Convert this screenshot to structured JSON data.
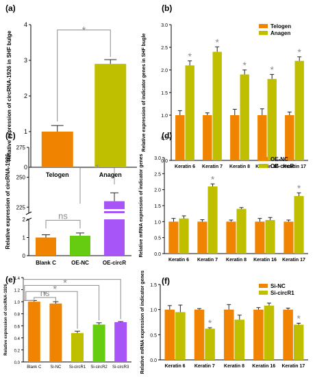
{
  "colors": {
    "orange": "#F08300",
    "olive": "#BFBF00",
    "green": "#66CC11",
    "purple": "#A855F7",
    "axis": "#000000",
    "significance": "#8C8C8C",
    "errorbar": "#222222"
  },
  "significance_marks": {
    "star": "*",
    "ns": "ns"
  },
  "chart_data": [
    {
      "panel": "(a)",
      "type": "bar",
      "ylabel": "Relative expression of circRNA-1926 in SHF bulge",
      "categories": [
        "Telogen",
        "Anagen"
      ],
      "values": [
        1.0,
        2.9
      ],
      "errors": [
        0.17,
        0.12
      ],
      "colors": [
        "#F08300",
        "#BFBF00"
      ],
      "ylim": [
        0,
        4
      ],
      "yticks": [
        "0",
        "1",
        "2",
        "3",
        "4"
      ],
      "significance": [
        {
          "from": 0,
          "to": 1,
          "label": "*"
        }
      ]
    },
    {
      "panel": "(b)",
      "type": "bar",
      "ylabel": "Relative expression of indicator genes in SHF bugle",
      "categories": [
        "Keratin 6",
        "Keratin 7",
        "Keratin 8",
        "Keratin 16",
        "Keratin 17"
      ],
      "series": [
        {
          "name": "Telogen",
          "values": [
            1.0,
            1.0,
            1.0,
            1.0,
            1.0
          ],
          "errors": [
            0.1,
            0.05,
            0.13,
            0.14,
            0.07
          ]
        },
        {
          "name": "Anagen",
          "values": [
            2.1,
            2.4,
            1.9,
            1.8,
            2.2
          ],
          "errors": [
            0.1,
            0.11,
            0.1,
            0.1,
            0.09
          ]
        }
      ],
      "starred": [
        true,
        true,
        true,
        true,
        true
      ],
      "ylim": [
        0,
        3
      ],
      "yticks": [
        "0.0",
        "0.5",
        "1.0",
        "1.5",
        "2.0",
        "2.5",
        "3.0"
      ],
      "legend": "top-right"
    },
    {
      "panel": "(c)",
      "type": "bar",
      "ylabel": "Relative expression of circRNA-1926",
      "categories": [
        "Blank C",
        "OE-NC",
        "OE-circR"
      ],
      "values": [
        1.0,
        1.1,
        230
      ],
      "errors": [
        0.15,
        0.15,
        7
      ],
      "colors": [
        "#F08300",
        "#66CC11",
        "#A855F7"
      ],
      "axis_break": true,
      "lower_ylim": [
        0,
        2
      ],
      "upper_ylim": [
        220,
        275
      ],
      "lower_yticks": [
        "0",
        "1",
        "2"
      ],
      "upper_yticks": [
        "225",
        "250",
        "275"
      ],
      "significance": [
        {
          "from": 0,
          "to": 1,
          "label": "ns"
        },
        {
          "from": 1,
          "to": 2,
          "label": "*"
        }
      ]
    },
    {
      "panel": "(d)",
      "type": "bar",
      "ylabel": "Relative mRNA expression of indicator genes",
      "categories": [
        "Keratin 6",
        "Keratin 7",
        "Keratin 8",
        "Keratin 16",
        "Keratin 17"
      ],
      "series": [
        {
          "name": "OE-NC",
          "values": [
            1.0,
            1.0,
            1.0,
            1.0,
            1.0
          ],
          "errors": [
            0.1,
            0.06,
            0.05,
            0.1,
            0.05
          ]
        },
        {
          "name": "OE-circR",
          "values": [
            1.1,
            2.1,
            1.4,
            1.05,
            1.8
          ],
          "errors": [
            0.08,
            0.08,
            0.04,
            0.08,
            0.1
          ]
        }
      ],
      "starred": [
        false,
        true,
        false,
        false,
        true
      ],
      "ylim": [
        0,
        3
      ],
      "yticks": [
        "0.0",
        "0.5",
        "1.0",
        "1.5",
        "2.0",
        "2.5",
        "3.0"
      ],
      "legend": "top-right"
    },
    {
      "panel": "(e)",
      "type": "bar",
      "ylabel": "Relative expression of circRNA-1926",
      "categories": [
        "Blank C",
        "Si-NC",
        "Si-circR1",
        "Si-circR2",
        "Si-circR3"
      ],
      "values": [
        1.0,
        0.97,
        0.48,
        0.62,
        0.66
      ],
      "errors": [
        0.02,
        0.03,
        0.03,
        0.03,
        0.01
      ],
      "colors": [
        "#F08300",
        "#F08300",
        "#BFBF00",
        "#66CC11",
        "#A855F7"
      ],
      "ylim": [
        0,
        1.4
      ],
      "yticks": [
        "0.0",
        "0.2",
        "0.4",
        "0.6",
        "0.8",
        "1.0",
        "1.2",
        "1.4"
      ],
      "significance": [
        {
          "from": 0,
          "to": 1,
          "label": "ns"
        },
        {
          "from": 0,
          "to": 2,
          "label": "*"
        },
        {
          "from": 0,
          "to": 3,
          "label": "*"
        },
        {
          "from": 0,
          "to": 4,
          "label": "*"
        }
      ]
    },
    {
      "panel": "(f)",
      "type": "bar",
      "ylabel": "Relative mRNA expression of indicator genes",
      "categories": [
        "Keratin 6",
        "Keratin 7",
        "Keratin 8",
        "Keratin 16",
        "Keratin 17"
      ],
      "series": [
        {
          "name": "Si-NC",
          "values": [
            1.0,
            1.0,
            1.0,
            1.0,
            1.0
          ],
          "errors": [
            0.08,
            0.02,
            0.1,
            0.04,
            0.03
          ]
        },
        {
          "name": "Si-circR1",
          "values": [
            0.95,
            0.62,
            0.8,
            1.08,
            0.7
          ],
          "errors": [
            0.14,
            0.02,
            0.09,
            0.05,
            0.03
          ]
        }
      ],
      "starred": [
        false,
        true,
        false,
        false,
        true
      ],
      "ylim": [
        0,
        1.5
      ],
      "yticks": [
        "0.0",
        "0.5",
        "1.0",
        "1.5"
      ],
      "legend": "top-right"
    }
  ]
}
